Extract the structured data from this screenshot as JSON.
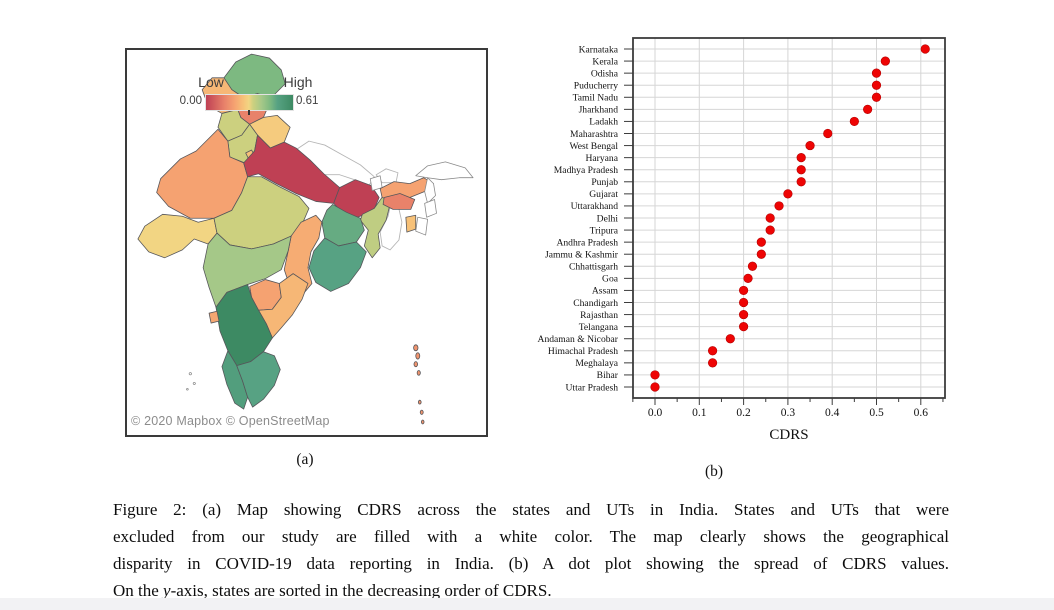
{
  "figure": {
    "panel_a_label": "(a)",
    "panel_b_label": "(b)"
  },
  "caption": {
    "lines": [
      "Figure 2: (a) Map showing CDRS across the states and UTs in India. States and UTs that were",
      "excluded from our study are filled with a white color. The map clearly shows the geographical",
      "disparity in COVID-19 data reporting in India. (b) A dot plot showing the spread of CDRS values."
    ],
    "last_line_prefix": "On the ",
    "last_line_italic": "y",
    "last_line_suffix": "-axis, states are sorted in the decreasing order of CDRS."
  },
  "map": {
    "legend": {
      "low_label": "Low",
      "high_label": "High",
      "min_value": "0.00",
      "max_value": "0.61"
    },
    "attribution": "© 2020 Mapbox © OpenStreetMap",
    "excluded_fill": "#ffffff",
    "excluded_regions": [
      "Arunachal Pradesh",
      "Nagaland",
      "Manipur",
      "Mizoram",
      "Sikkim",
      "Lakshadweep"
    ],
    "neighbor_regions": [
      "Nepal",
      "Bhutan",
      "Bangladesh"
    ],
    "colorscale": [
      {
        "value": 0.0,
        "color": "#bf4054"
      },
      {
        "value": 0.13,
        "color": "#e8826a"
      },
      {
        "value": 0.2,
        "color": "#f5a271"
      },
      {
        "value": 0.26,
        "color": "#f7c178"
      },
      {
        "value": 0.3,
        "color": "#f2d583"
      },
      {
        "value": 0.33,
        "color": "#ccd07f"
      },
      {
        "value": 0.39,
        "color": "#a5c888"
      },
      {
        "value": 0.45,
        "color": "#7db981"
      },
      {
        "value": 0.5,
        "color": "#57a283"
      },
      {
        "value": 0.61,
        "color": "#3d8a63"
      }
    ]
  },
  "chart_data": {
    "type": "scatter",
    "subtype": "dot-plot",
    "title": "",
    "xlabel": "CDRS",
    "ylabel": "",
    "grid": true,
    "xlim": [
      -0.05,
      0.655
    ],
    "xticks": [
      0.0,
      0.1,
      0.2,
      0.3,
      0.4,
      0.5,
      0.6
    ],
    "dot_color": "#ee0404",
    "dot_edge_color": "#b50000",
    "categories": [
      "Karnataka",
      "Kerala",
      "Odisha",
      "Puducherry",
      "Tamil Nadu",
      "Jharkhand",
      "Ladakh",
      "Maharashtra",
      "West Bengal",
      "Haryana",
      "Madhya Pradesh",
      "Punjab",
      "Gujarat",
      "Uttarakhand",
      "Delhi",
      "Tripura",
      "Andhra Pradesh",
      "Jammu & Kashmir",
      "Chhattisgarh",
      "Goa",
      "Assam",
      "Chandigarh",
      "Rajasthan",
      "Telangana",
      "Andaman & Nicobar",
      "Himachal Pradesh",
      "Meghalaya",
      "Bihar",
      "Uttar Pradesh"
    ],
    "values": [
      0.61,
      0.52,
      0.5,
      0.5,
      0.5,
      0.48,
      0.45,
      0.39,
      0.35,
      0.33,
      0.33,
      0.33,
      0.3,
      0.28,
      0.26,
      0.26,
      0.24,
      0.24,
      0.22,
      0.21,
      0.2,
      0.2,
      0.2,
      0.2,
      0.17,
      0.13,
      0.13,
      0.0,
      0.0
    ]
  }
}
